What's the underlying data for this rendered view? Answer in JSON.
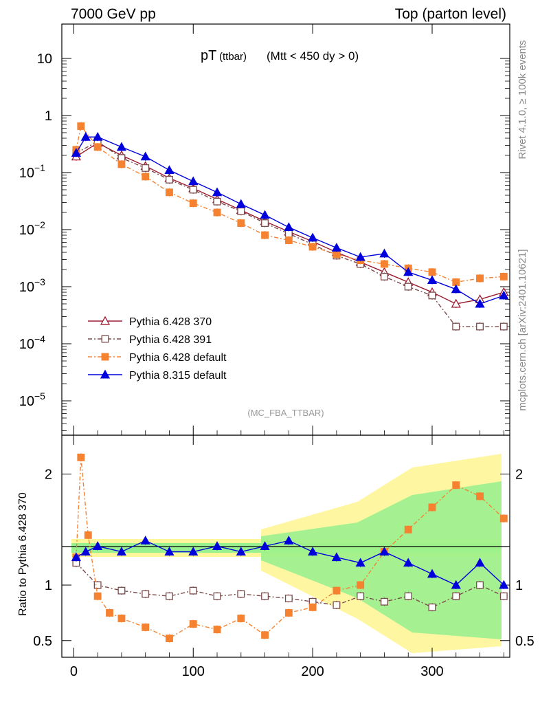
{
  "header": {
    "left": "7000 GeV pp",
    "right": "Top (parton level)"
  },
  "side_labels": {
    "rivet": "Rivet 4.1.0, ≥ 100k events",
    "mcplots": "mcplots.cern.ch [arXiv:2401.10621]"
  },
  "chart_data": [
    {
      "type": "line",
      "panel": "main",
      "title_main": "pT",
      "title_sub": "(ttbar)",
      "title_cut": "(Mtt < 450 dy > 0)",
      "analysis_tag": "(MC_FBA_TTBAR)",
      "yscale": "log",
      "xlim": [
        -10,
        365
      ],
      "ylim": [
        2.5e-06,
        40
      ],
      "y_ticks": [
        {
          "value": 10,
          "label": "10"
        },
        {
          "value": 1,
          "label": "1"
        },
        {
          "value": 0.1,
          "label": "10",
          "exp": "−1"
        },
        {
          "value": 0.01,
          "label": "10",
          "exp": "−2"
        },
        {
          "value": 0.001,
          "label": "10",
          "exp": "−3"
        },
        {
          "value": 0.0001,
          "label": "10",
          "exp": "−4"
        },
        {
          "value": 1e-05,
          "label": "10",
          "exp": "−5"
        }
      ],
      "legend": [
        {
          "name": "Pythia 6.428 370",
          "color": "#9b1b30",
          "marker": "triangle-open",
          "dash": ""
        },
        {
          "name": "Pythia 6.428 391",
          "color": "#7a4a4a",
          "marker": "square-open",
          "dash": "6,3,2,3"
        },
        {
          "name": "Pythia 6.428 default",
          "color": "#f58231",
          "marker": "square",
          "dash": "6,3,2,3"
        },
        {
          "name": "Pythia 8.315 default",
          "color": "#0000dd",
          "marker": "triangle",
          "dash": ""
        }
      ],
      "series": [
        {
          "name": "Pythia 6.428 370",
          "x": [
            2,
            20,
            40,
            60,
            80,
            100,
            120,
            140,
            160,
            180,
            200,
            220,
            240,
            260,
            280,
            300,
            320,
            340,
            360
          ],
          "values": [
            0.19,
            0.33,
            0.2,
            0.13,
            0.08,
            0.053,
            0.034,
            0.022,
            0.014,
            0.0092,
            0.0062,
            0.004,
            0.0027,
            0.0018,
            0.0012,
            0.0008,
            0.0005,
            0.0006,
            0.0008
          ]
        },
        {
          "name": "Pythia 6.428 391",
          "x": [
            2,
            20,
            40,
            60,
            80,
            100,
            120,
            140,
            160,
            180,
            200,
            220,
            240,
            260,
            280,
            300,
            320,
            340,
            360
          ],
          "values": [
            0.22,
            0.35,
            0.18,
            0.12,
            0.075,
            0.05,
            0.031,
            0.021,
            0.013,
            0.0085,
            0.0055,
            0.0035,
            0.0025,
            0.0015,
            0.001,
            0.0007,
            0.0002,
            0.0002,
            0.0002
          ]
        },
        {
          "name": "Pythia 6.428 default",
          "x": [
            2,
            6,
            20,
            40,
            60,
            80,
            100,
            120,
            140,
            160,
            180,
            200,
            220,
            240,
            260,
            280,
            300,
            320,
            340,
            360
          ],
          "values": [
            0.25,
            0.65,
            0.28,
            0.14,
            0.085,
            0.045,
            0.029,
            0.02,
            0.013,
            0.008,
            0.0065,
            0.005,
            0.0037,
            0.0029,
            0.0025,
            0.0021,
            0.0018,
            0.0012,
            0.0014,
            0.0015
          ]
        },
        {
          "name": "Pythia 8.315 default",
          "x": [
            2,
            10,
            20,
            40,
            60,
            80,
            100,
            120,
            140,
            160,
            180,
            200,
            220,
            240,
            260,
            280,
            300,
            320,
            340,
            360
          ],
          "values": [
            0.22,
            0.42,
            0.42,
            0.28,
            0.19,
            0.11,
            0.07,
            0.045,
            0.028,
            0.018,
            0.011,
            0.0072,
            0.0048,
            0.0033,
            0.0038,
            0.0018,
            0.0013,
            0.0009,
            0.0005,
            0.0007
          ]
        }
      ]
    },
    {
      "type": "line",
      "panel": "ratio",
      "ylabel": "Ratio to Pythia 6.428 370",
      "xlim": [
        -10,
        365
      ],
      "ylim": [
        0.35,
        2.35
      ],
      "x_ticks": [
        0,
        100,
        200,
        300
      ],
      "y_ticks": [
        {
          "value": 2,
          "label": "2"
        },
        {
          "value": 1,
          "label": "1"
        },
        {
          "value": 0.5,
          "label": "0.5"
        }
      ],
      "series": [
        {
          "name": "Pythia 6.428 391",
          "x": [
            2,
            20,
            40,
            60,
            80,
            100,
            120,
            140,
            160,
            180,
            200,
            220,
            240,
            260,
            280,
            300,
            320,
            340,
            360
          ],
          "values": [
            1.2,
            1.0,
            0.95,
            0.92,
            0.9,
            0.95,
            0.9,
            0.92,
            0.9,
            0.88,
            0.85,
            0.82,
            0.9,
            0.85,
            0.9,
            0.8,
            0.9,
            1.0,
            0.9
          ]
        },
        {
          "name": "Pythia 6.428 default",
          "x": [
            2,
            6,
            12,
            20,
            30,
            40,
            60,
            80,
            100,
            120,
            140,
            160,
            180,
            200,
            220,
            240,
            260,
            280,
            300,
            320,
            340,
            360
          ],
          "values": [
            1.25,
            2.15,
            1.45,
            0.9,
            0.75,
            0.7,
            0.62,
            0.52,
            0.65,
            0.6,
            0.7,
            0.55,
            0.75,
            0.8,
            0.95,
            1.0,
            1.3,
            1.5,
            1.7,
            1.9,
            1.8,
            1.6
          ]
        },
        {
          "name": "Pythia 8.315 default",
          "x": [
            2,
            10,
            20,
            40,
            60,
            80,
            100,
            120,
            140,
            160,
            180,
            200,
            220,
            240,
            260,
            280,
            300,
            320,
            340,
            360
          ],
          "values": [
            1.25,
            1.3,
            1.35,
            1.3,
            1.4,
            1.3,
            1.3,
            1.35,
            1.3,
            1.35,
            1.4,
            1.3,
            1.25,
            1.2,
            1.3,
            1.2,
            1.1,
            1.0,
            1.2,
            1.0
          ]
        }
      ]
    }
  ]
}
